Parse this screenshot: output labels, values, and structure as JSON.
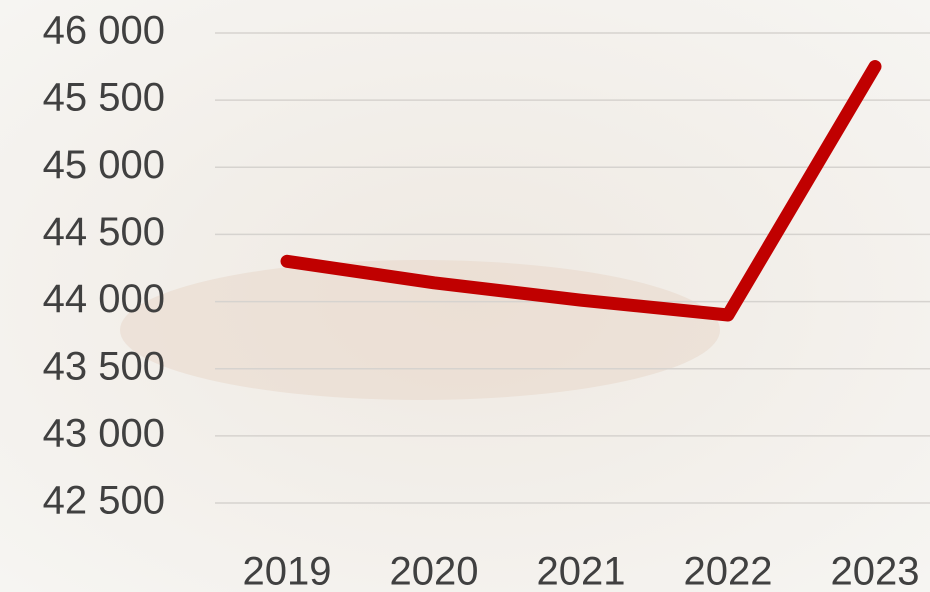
{
  "chart_data": {
    "type": "line",
    "categories": [
      "2019",
      "2020",
      "2021",
      "2022",
      "2023"
    ],
    "series": [
      {
        "color": "#c00000",
        "values": [
          44300,
          44140,
          44010,
          43900,
          45750
        ]
      }
    ],
    "ylim": [
      42500,
      46000
    ],
    "yticks": [
      {
        "value": 42500,
        "label": "42 500"
      },
      {
        "value": 43000,
        "label": "43 000"
      },
      {
        "value": 43500,
        "label": "43 500"
      },
      {
        "value": 44000,
        "label": "44 000"
      },
      {
        "value": 44500,
        "label": "44 500"
      },
      {
        "value": 45000,
        "label": "45 000"
      },
      {
        "value": 45500,
        "label": "45 500"
      },
      {
        "value": 46000,
        "label": "46 000"
      }
    ],
    "grid": true
  }
}
